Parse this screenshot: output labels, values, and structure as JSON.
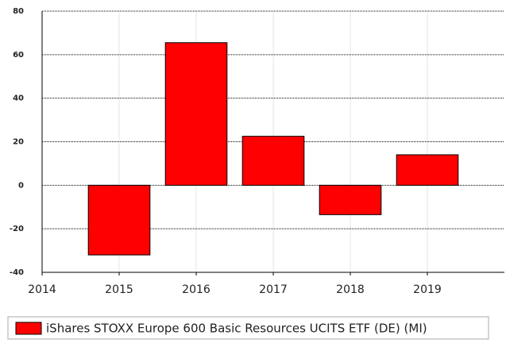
{
  "chart_data": {
    "type": "bar",
    "x": [
      2015,
      2016,
      2017,
      2018,
      2019
    ],
    "series": [
      {
        "name": "iShares STOXX Europe 600 Basic Resources UCITS ETF (DE) (MI)",
        "color": "#ff0000",
        "values": [
          -32,
          65.5,
          22.5,
          -13.5,
          14
        ]
      }
    ],
    "xlim": [
      2014,
      2020
    ],
    "xticks": [
      2014,
      2015,
      2016,
      2017,
      2018,
      2019
    ],
    "ylim": [
      -40,
      80
    ],
    "yticks": [
      -40,
      -20,
      0,
      20,
      40,
      60,
      80
    ],
    "grid": true,
    "legend": "bottom-left"
  }
}
